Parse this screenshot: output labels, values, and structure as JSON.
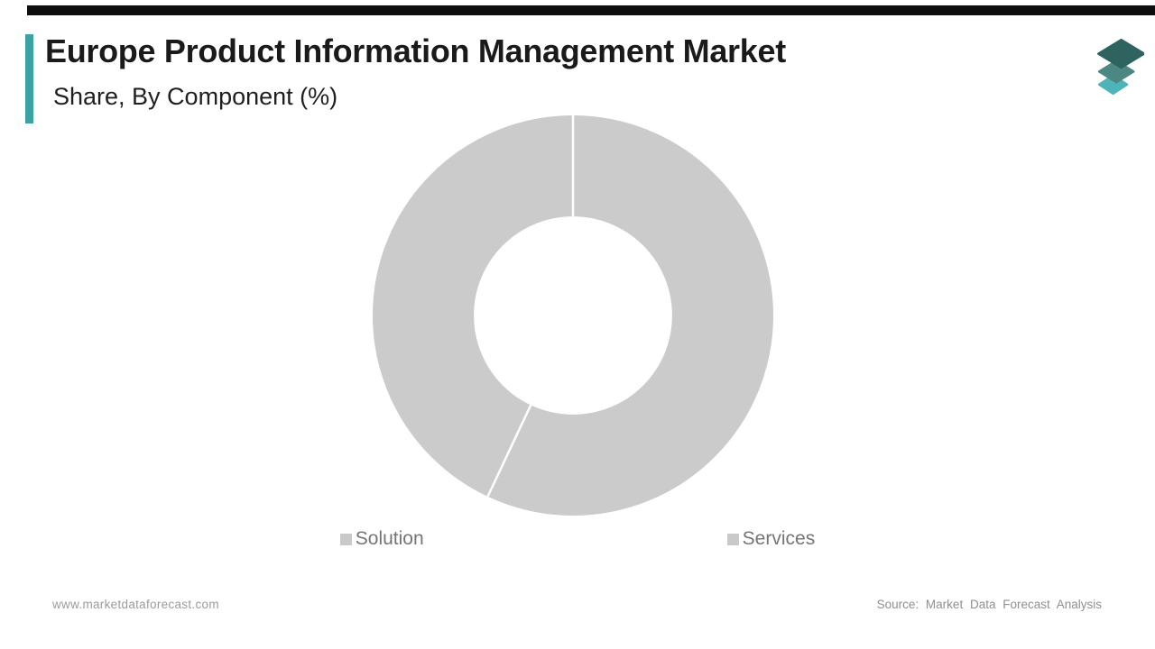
{
  "header": {
    "title": "Europe Product Information Management Market",
    "subtitle": "Share, By Component (%)",
    "accent_color": "#3ba2a2",
    "top_bar_color": "#0d0d0d"
  },
  "logo": {
    "name": "market-data-forecast-logo",
    "layer_colors": [
      "#4fb4ba",
      "#4c8782",
      "#2e6360"
    ]
  },
  "chart_data": {
    "type": "pie",
    "subtype": "donut",
    "title": "Europe Product Information Management Market Share, By Component (%)",
    "categories": [
      "Solution",
      "Services"
    ],
    "values": [
      57,
      43
    ],
    "unit": "%",
    "start_angle_deg": 0,
    "direction": "clockwise",
    "slice_colors": [
      "#cbcbcb",
      "#cbcbcb"
    ],
    "divider_color": "#ffffff",
    "inner_radius_ratio": 0.495,
    "legend_position": "bottom",
    "data_labels": false,
    "note": "both slices rendered in placeholder gray; boundaries marked by thin white divider lines"
  },
  "legend": {
    "items": [
      {
        "label": "Solution",
        "marker_color": "#c9c9c9"
      },
      {
        "label": "Services",
        "marker_color": "#c9c9c9"
      }
    ]
  },
  "footer": {
    "website": "www.marketdataforecast.com",
    "source": "Source: Market Data Forecast Analysis"
  }
}
